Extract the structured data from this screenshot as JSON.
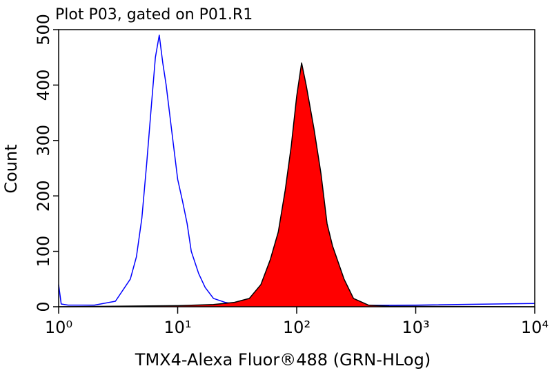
{
  "chart_data": {
    "type": "histogram-overlay",
    "title": "Plot P03, gated on P01.R1",
    "xlabel": "TMX4-Alexa Fluor®488 (GRN-HLog)",
    "ylabel": "Count",
    "xscale": "log",
    "xlim": [
      1,
      10000
    ],
    "xticks": [
      {
        "value": 1,
        "label": "10⁰"
      },
      {
        "value": 10,
        "label": "10¹"
      },
      {
        "value": 100,
        "label": "10²"
      },
      {
        "value": 1000,
        "label": "10³"
      },
      {
        "value": 10000,
        "label": "10⁴"
      }
    ],
    "ylim": [
      0,
      500
    ],
    "yticks": [
      0,
      100,
      200,
      300,
      400,
      500
    ],
    "series": [
      {
        "color": "#0000ff",
        "fill": false,
        "x": [
          1,
          1.05,
          1.2,
          2,
          3,
          4,
          4.5,
          5,
          5.5,
          6,
          6.5,
          7,
          7.5,
          8,
          9,
          10,
          11,
          12,
          13,
          15,
          17,
          20,
          25,
          30,
          50,
          100,
          1000,
          10000
        ],
        "values": [
          40,
          5,
          3,
          3,
          10,
          50,
          90,
          160,
          260,
          360,
          450,
          490,
          440,
          400,
          310,
          230,
          190,
          150,
          100,
          60,
          35,
          15,
          8,
          5,
          3,
          2,
          3,
          6
        ]
      },
      {
        "color": "#ff0000",
        "edgecolor": "#000000",
        "fill": true,
        "x": [
          1,
          10,
          20,
          30,
          40,
          50,
          60,
          70,
          80,
          90,
          100,
          110,
          120,
          140,
          160,
          180,
          200,
          250,
          300,
          400,
          600,
          10000
        ],
        "values": [
          0,
          2,
          4,
          8,
          15,
          40,
          85,
          135,
          210,
          290,
          380,
          440,
          400,
          320,
          240,
          150,
          110,
          50,
          15,
          3,
          1,
          0
        ]
      }
    ]
  }
}
